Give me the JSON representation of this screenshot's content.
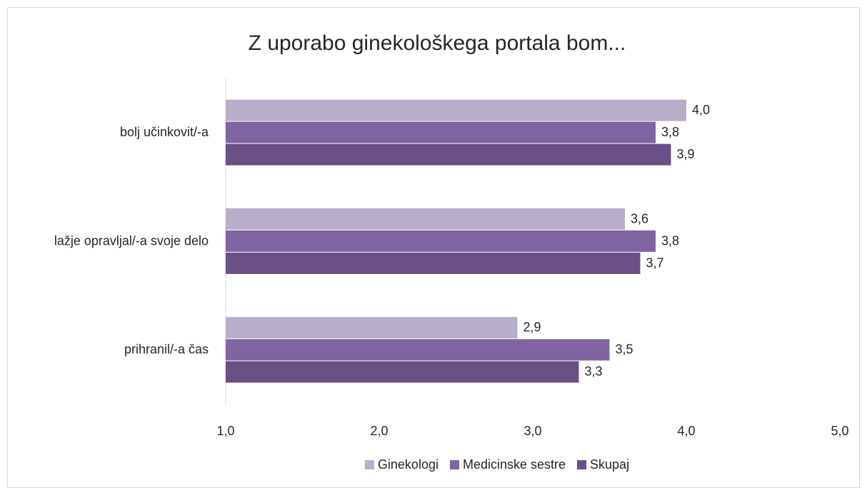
{
  "chart_data": {
    "type": "bar",
    "orientation": "horizontal",
    "title": "Z uporabo ginekološkega portala bom...",
    "categories": [
      "bolj učinkovit/-a",
      "lažje opravljal/-a svoje delo",
      "prihranil/-a čas"
    ],
    "series": [
      {
        "name": "Ginekologi",
        "color": "#b9aec9",
        "values": [
          4.0,
          3.6,
          2.9
        ],
        "value_labels": [
          "4,0",
          "3,6",
          "2,9"
        ]
      },
      {
        "name": "Medicinske sestre",
        "color": "#8064a2",
        "values": [
          3.8,
          3.8,
          3.5
        ],
        "value_labels": [
          "3,8",
          "3,8",
          "3,5"
        ]
      },
      {
        "name": "Skupaj",
        "color": "#6a5086",
        "values": [
          3.9,
          3.7,
          3.3
        ],
        "value_labels": [
          "3,9",
          "3,7",
          "3,3"
        ]
      }
    ],
    "xlim": [
      1,
      5
    ],
    "xticks": [
      {
        "value": 1,
        "label": "1,0"
      },
      {
        "value": 2,
        "label": "2,0"
      },
      {
        "value": 3,
        "label": "3,0"
      },
      {
        "value": 4,
        "label": "4,0"
      },
      {
        "value": 5,
        "label": "5,0"
      }
    ],
    "grid": false,
    "legend": "bottom"
  }
}
